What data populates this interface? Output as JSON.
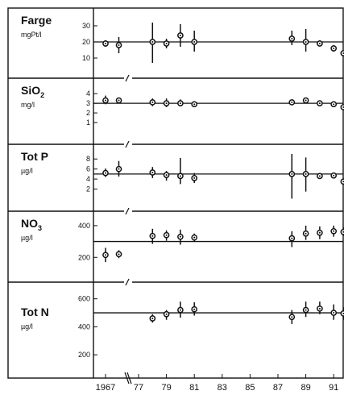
{
  "chart_data": {
    "type": "scatter",
    "x_axis": {
      "ticks": [
        "1967",
        "77",
        "79",
        "81",
        "83",
        "85",
        "87",
        "89",
        "91"
      ]
    },
    "panels": [
      {
        "name": "Farge",
        "unit": "mgPt/l",
        "ylim": [
          5,
          35
        ],
        "yticks": [
          10,
          20,
          30
        ],
        "reference": 20,
        "points": [
          {
            "x": 1967,
            "y": 19,
            "low": 17,
            "high": 21
          },
          {
            "x": 1968,
            "y": 18,
            "low": 13,
            "high": 23
          },
          {
            "x": 1978,
            "y": 20,
            "low": 7,
            "high": 32
          },
          {
            "x": 1979,
            "y": 19,
            "low": 16,
            "high": 22
          },
          {
            "x": 1980,
            "y": 24,
            "low": 17,
            "high": 31
          },
          {
            "x": 1981,
            "y": 20,
            "low": 14,
            "high": 27
          },
          {
            "x": 1988,
            "y": 22,
            "low": 18,
            "high": 27
          },
          {
            "x": 1989,
            "y": 20,
            "low": 14,
            "high": 28
          },
          {
            "x": 1990,
            "y": 19,
            "low": 18,
            "high": 21
          },
          {
            "x": 1991,
            "y": 16,
            "low": 14,
            "high": 18
          },
          {
            "x": 1991.7,
            "y": 13,
            "low": 11,
            "high": 14
          }
        ]
      },
      {
        "name": "SiO",
        "name_sub": "2",
        "unit": "mg/l",
        "ylim": [
          0,
          4.6
        ],
        "yticks": [
          1,
          2,
          3,
          4
        ],
        "reference": 3,
        "points": [
          {
            "x": 1967,
            "y": 3.3,
            "low": 2.9,
            "high": 3.8
          },
          {
            "x": 1968,
            "y": 3.3,
            "low": 3.2,
            "high": 3.4
          },
          {
            "x": 1978,
            "y": 3.1,
            "low": 2.7,
            "high": 3.5
          },
          {
            "x": 1979,
            "y": 3.0,
            "low": 2.6,
            "high": 3.5
          },
          {
            "x": 1980,
            "y": 3.0,
            "low": 2.7,
            "high": 3.4
          },
          {
            "x": 1981,
            "y": 2.9,
            "low": 2.7,
            "high": 3.1
          },
          {
            "x": 1988,
            "y": 3.1,
            "low": 2.8,
            "high": 3.4
          },
          {
            "x": 1989,
            "y": 3.3,
            "low": 3.0,
            "high": 3.5
          },
          {
            "x": 1990,
            "y": 3.0,
            "low": 2.8,
            "high": 3.3
          },
          {
            "x": 1991,
            "y": 2.9,
            "low": 2.7,
            "high": 3.2
          },
          {
            "x": 1991.7,
            "y": 2.6,
            "low": 2.3,
            "high": 2.8
          }
        ]
      },
      {
        "name": "Tot P",
        "unit": "µg/l",
        "ylim": [
          0,
          9
        ],
        "yticks": [
          2,
          4,
          6,
          8
        ],
        "reference": 5,
        "points": [
          {
            "x": 1967,
            "y": 5.2,
            "low": 4.4,
            "high": 6.1
          },
          {
            "x": 1968,
            "y": 6.0,
            "low": 4.5,
            "high": 7.6
          },
          {
            "x": 1978,
            "y": 5.3,
            "low": 4.2,
            "high": 6.4
          },
          {
            "x": 1979,
            "y": 4.8,
            "low": 3.7,
            "high": 5.6
          },
          {
            "x": 1980,
            "y": 4.6,
            "low": 3.0,
            "high": 8.2
          },
          {
            "x": 1981,
            "y": 4.2,
            "low": 3.2,
            "high": 5.2
          },
          {
            "x": 1988,
            "y": 5.0,
            "low": 0.1,
            "high": 9.0
          },
          {
            "x": 1989,
            "y": 5.0,
            "low": 1.5,
            "high": 8.3
          },
          {
            "x": 1990,
            "y": 4.6,
            "low": 4.1,
            "high": 5.1
          },
          {
            "x": 1991,
            "y": 4.7,
            "low": 4.2,
            "high": 5.1
          },
          {
            "x": 1991.7,
            "y": 3.5,
            "low": 3.2,
            "high": 3.9
          }
        ]
      },
      {
        "name": "NO",
        "name_sub": "3",
        "unit": "µg/l",
        "ylim": [
          120,
          430
        ],
        "yticks": [
          200,
          400
        ],
        "reference": 300,
        "points": [
          {
            "x": 1967,
            "y": 215,
            "low": 170,
            "high": 260
          },
          {
            "x": 1968,
            "y": 220,
            "low": 195,
            "high": 245
          },
          {
            "x": 1978,
            "y": 335,
            "low": 285,
            "high": 380
          },
          {
            "x": 1979,
            "y": 340,
            "low": 305,
            "high": 370
          },
          {
            "x": 1980,
            "y": 330,
            "low": 280,
            "high": 375
          },
          {
            "x": 1981,
            "y": 325,
            "low": 300,
            "high": 350
          },
          {
            "x": 1988,
            "y": 320,
            "low": 265,
            "high": 365
          },
          {
            "x": 1989,
            "y": 350,
            "low": 310,
            "high": 400
          },
          {
            "x": 1990,
            "y": 355,
            "low": 315,
            "high": 395
          },
          {
            "x": 1991,
            "y": 365,
            "low": 330,
            "high": 400
          },
          {
            "x": 1991.7,
            "y": 360,
            "low": 335,
            "high": 390
          }
        ]
      },
      {
        "name": "Tot N",
        "unit": "µg/l",
        "ylim": [
          120,
          650
        ],
        "yticks": [
          200,
          400,
          600
        ],
        "reference": 500,
        "points": [
          {
            "x": 1978,
            "y": 460,
            "low": 430,
            "high": 490
          },
          {
            "x": 1979,
            "y": 490,
            "low": 450,
            "high": 520
          },
          {
            "x": 1980,
            "y": 520,
            "low": 465,
            "high": 580
          },
          {
            "x": 1981,
            "y": 525,
            "low": 480,
            "high": 575
          },
          {
            "x": 1988,
            "y": 470,
            "low": 420,
            "high": 520
          },
          {
            "x": 1989,
            "y": 520,
            "low": 470,
            "high": 580
          },
          {
            "x": 1990,
            "y": 530,
            "low": 490,
            "high": 580
          },
          {
            "x": 1991,
            "y": 500,
            "low": 450,
            "high": 560
          },
          {
            "x": 1991.7,
            "y": 495,
            "low": 450,
            "high": 540
          }
        ]
      }
    ]
  }
}
